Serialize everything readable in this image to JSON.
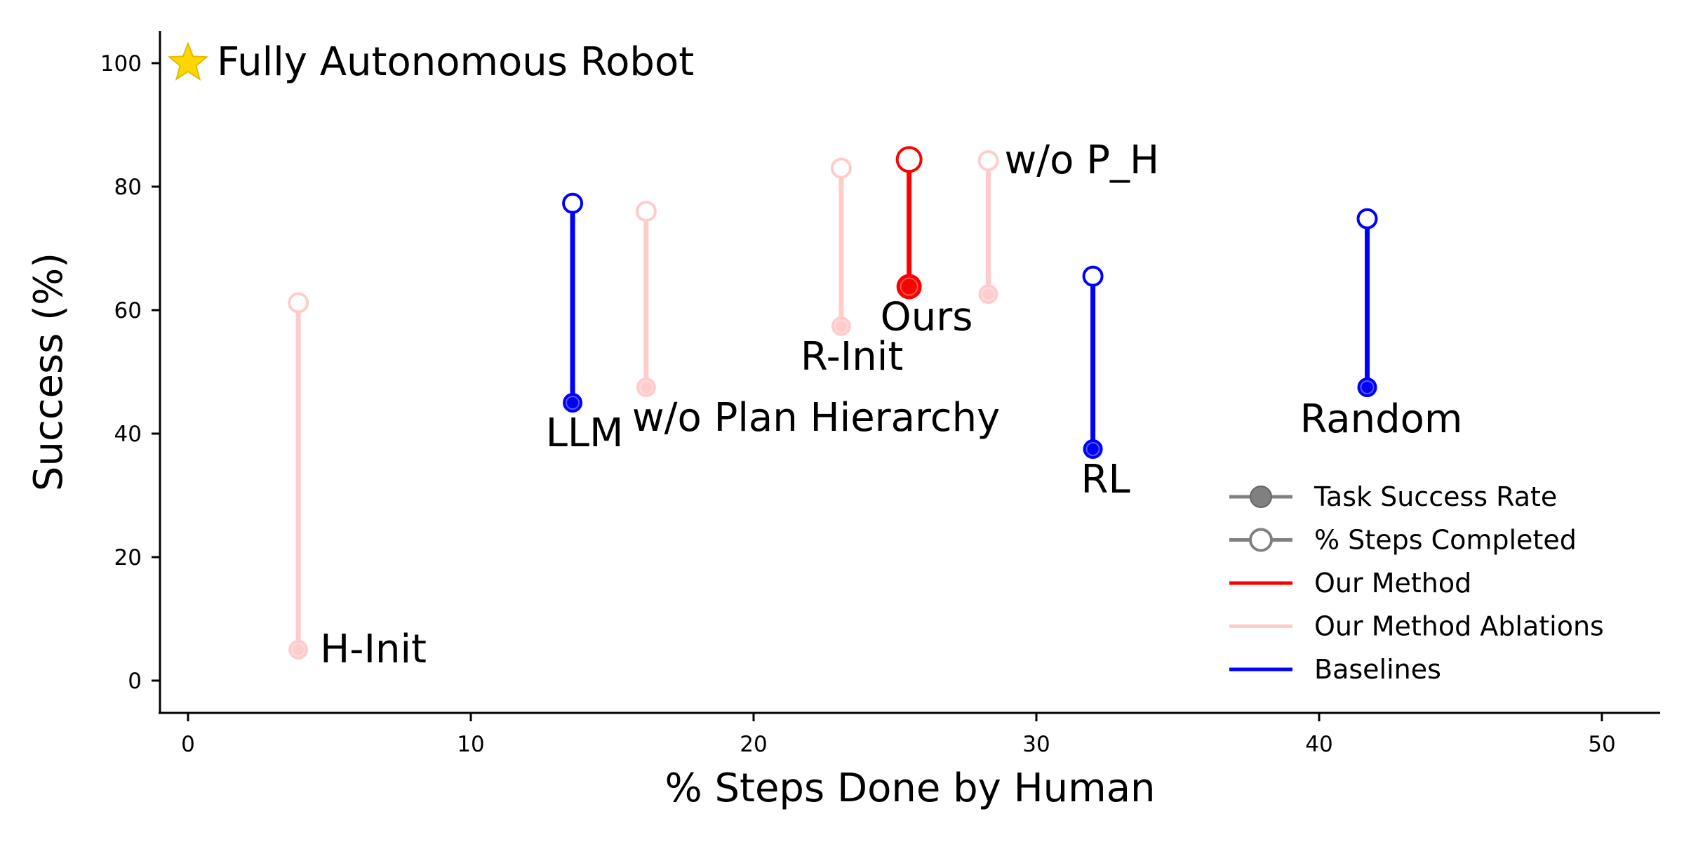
{
  "chart_data": {
    "type": "scatter",
    "xlabel": "% Steps Done by Human",
    "ylabel": "Success (%)",
    "xlim": [
      -1,
      52
    ],
    "ylim": [
      -5,
      105
    ],
    "xticks": [
      0,
      10,
      20,
      30,
      40,
      50
    ],
    "yticks": [
      0,
      20,
      40,
      60,
      80,
      100
    ],
    "grid": false,
    "legend_position": "bottom-right",
    "colors": {
      "ours": "#ff0000",
      "ablation": "#ffcccc",
      "baseline": "#0000ff",
      "legend_marker": "#808080",
      "star": "#ffd700"
    },
    "reference_point": {
      "label": "Fully Autonomous Robot",
      "x": 0,
      "y": 100,
      "marker": "star"
    },
    "points": [
      {
        "name": "Ours",
        "group": "ours",
        "x": 25.5,
        "task_success": 63.8,
        "steps_completed": 84.4,
        "label_anchor": "below-right"
      },
      {
        "name": "w/o P_H",
        "group": "ablation",
        "x": 28.3,
        "task_success": 62.6,
        "steps_completed": 84.2,
        "label_anchor": "right-top"
      },
      {
        "name": "R-Init",
        "group": "ablation",
        "x": 23.1,
        "task_success": 57.4,
        "steps_completed": 83.0,
        "label_anchor": "below-left"
      },
      {
        "name": "w/o Plan Hierarchy",
        "group": "ablation",
        "x": 16.2,
        "task_success": 47.5,
        "steps_completed": 76.0,
        "label_anchor": "below-right"
      },
      {
        "name": "H-Init",
        "group": "ablation",
        "x": 3.9,
        "task_success": 5.0,
        "steps_completed": 61.2,
        "label_anchor": "right-bottom"
      },
      {
        "name": "LLM",
        "group": "baseline",
        "x": 13.6,
        "task_success": 45.0,
        "steps_completed": 77.3,
        "label_anchor": "below"
      },
      {
        "name": "RL",
        "group": "baseline",
        "x": 32.0,
        "task_success": 37.5,
        "steps_completed": 65.5,
        "label_anchor": "below"
      },
      {
        "name": "Random",
        "group": "baseline",
        "x": 41.7,
        "task_success": 47.5,
        "steps_completed": 74.8,
        "label_anchor": "below"
      }
    ],
    "legend": [
      {
        "label": "Task Success Rate",
        "kind": "filled-marker"
      },
      {
        "label": "% Steps Completed",
        "kind": "open-marker"
      },
      {
        "label": "Our Method",
        "kind": "line",
        "group": "ours"
      },
      {
        "label": "Our Method Ablations",
        "kind": "line",
        "group": "ablation"
      },
      {
        "label": "Baselines",
        "kind": "line",
        "group": "baseline"
      }
    ]
  }
}
